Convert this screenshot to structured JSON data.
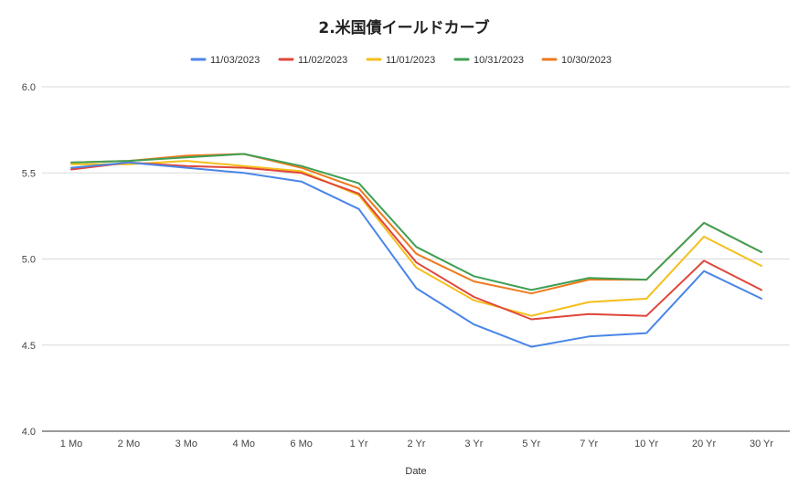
{
  "chart_data": {
    "type": "line",
    "title": "2.米国債イールドカーブ",
    "xlabel": "Date",
    "ylabel": "",
    "ylim": [
      4.0,
      6.0
    ],
    "yticks": [
      "4.0",
      "4.5",
      "5.0",
      "5.5",
      "6.0"
    ],
    "grid": true,
    "legend_position": "top",
    "categories": [
      "1 Mo",
      "2 Mo",
      "3 Mo",
      "4 Mo",
      "6 Mo",
      "1 Yr",
      "2 Yr",
      "3 Yr",
      "5 Yr",
      "7 Yr",
      "10 Yr",
      "20 Yr",
      "30 Yr"
    ],
    "series": [
      {
        "name": "11/03/2023",
        "color": "#4a86e8",
        "values": [
          5.53,
          5.56,
          5.53,
          5.5,
          5.45,
          5.29,
          4.83,
          4.62,
          4.49,
          4.55,
          4.57,
          4.93,
          4.77
        ]
      },
      {
        "name": "11/02/2023",
        "color": "#e0463a",
        "values": [
          5.52,
          5.56,
          5.54,
          5.53,
          5.5,
          5.38,
          4.98,
          4.78,
          4.65,
          4.68,
          4.67,
          4.99,
          4.82
        ]
      },
      {
        "name": "11/01/2023",
        "color": "#f4bf1a",
        "values": [
          5.55,
          5.55,
          5.57,
          5.54,
          5.51,
          5.37,
          4.95,
          4.76,
          4.67,
          4.75,
          4.77,
          5.13,
          4.96
        ]
      },
      {
        "name": "10/31/2023",
        "color": "#3f9f54",
        "values": [
          5.56,
          5.57,
          5.59,
          5.61,
          5.54,
          5.44,
          5.07,
          4.9,
          4.82,
          4.89,
          4.88,
          5.21,
          5.04
        ]
      },
      {
        "name": "10/30/2023",
        "color": "#ee7a1d",
        "values": [
          5.56,
          5.57,
          5.6,
          5.61,
          5.53,
          5.41,
          5.03,
          4.87,
          4.8,
          4.88,
          4.88,
          5.21,
          5.04
        ]
      }
    ]
  }
}
